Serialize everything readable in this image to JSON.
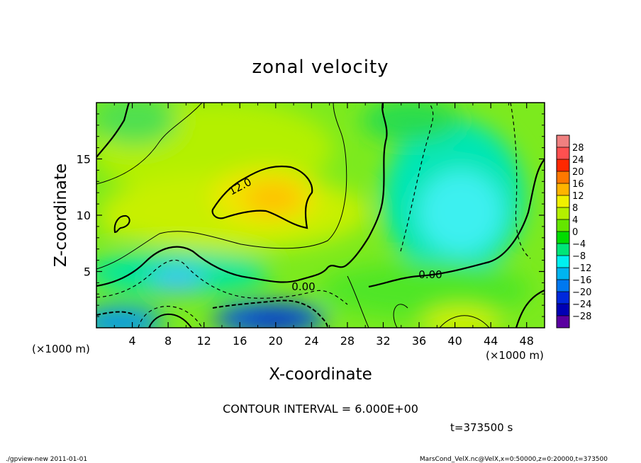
{
  "chart_data": {
    "type": "heatmap",
    "title": "zonal velocity",
    "xlabel": "X-coordinate",
    "ylabel": "Z-coordinate",
    "x_unit_label": "(×1000 m)",
    "y_unit_label": "(×1000 m)",
    "xlim": [
      0,
      50
    ],
    "ylim": [
      0,
      20
    ],
    "x_ticks": [
      "4",
      "8",
      "12",
      "16",
      "20",
      "24",
      "28",
      "32",
      "36",
      "40",
      "44",
      "48"
    ],
    "y_ticks": [
      "5",
      "10",
      "15"
    ],
    "contour_interval_text": "CONTOUR INTERVAL = 6.000E+00",
    "time_text": "t=373500 s",
    "contour_labels": [
      {
        "text": "12.0",
        "x": 15.2,
        "y": 12.6
      },
      {
        "text": "0.00",
        "x": 23.0,
        "y": 3.7
      },
      {
        "text": "0.00",
        "x": 37.7,
        "y": 4.6
      }
    ],
    "colorbar": {
      "levels": [
        "28",
        "24",
        "20",
        "16",
        "12",
        "8",
        "4",
        "0",
        "−4",
        "−8",
        "−12",
        "−16",
        "−20",
        "−24",
        "−28"
      ],
      "colors": [
        "#f08080",
        "#ff5050",
        "#ff2800",
        "#ff7800",
        "#ffb400",
        "#f0f000",
        "#b4f000",
        "#64e600",
        "#00dc00",
        "#00e678",
        "#00f0f0",
        "#00b4f0",
        "#0078f0",
        "#0028dc",
        "#0000b4",
        "#5a00a0"
      ]
    }
  },
  "footer": {
    "left": "./gpview-new   2011-01-01",
    "right": "MarsCond_VelX.nc@VelX,x=0:50000,z=0:20000,t=373500"
  }
}
